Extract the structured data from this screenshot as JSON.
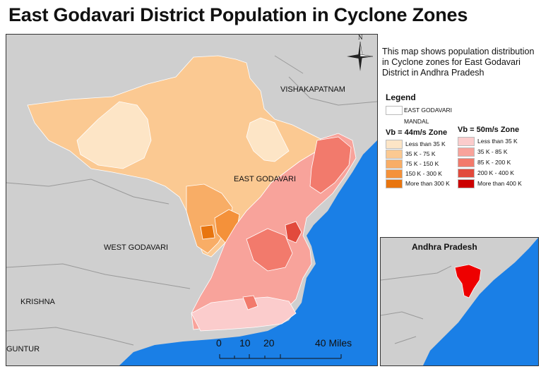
{
  "title": "East Godavari District Population in Cyclone Zones",
  "description": "This map shows population distribution in Cyclone zones for East Godavari District in Andhra Pradesh",
  "north_arrow": {
    "label": "N",
    "icon": "north-arrow-icon"
  },
  "map_labels": {
    "vishakapatnam": "VISHAKAPATNAM",
    "east_godavari": "EAST GODAVARI",
    "west_godavari": "WEST GODAVARI",
    "krishna": "KRISHNA",
    "guntur": "GUNTUR"
  },
  "legend": {
    "title": "Legend",
    "district_label": "EAST GODAVARI",
    "mandal_label": "MANDAL",
    "zone44": {
      "title": "Vb = 44m/s Zone",
      "items": [
        {
          "label": "Less than 35 K",
          "color": "#fde5c6"
        },
        {
          "label": "35 K - 75 K",
          "color": "#fbc992"
        },
        {
          "label": "75 K - 150 K",
          "color": "#f8ad66"
        },
        {
          "label": "150 K - 300 K",
          "color": "#f4913a"
        },
        {
          "label": "More than 300 K",
          "color": "#e8750f"
        }
      ]
    },
    "zone50": {
      "title": "Vb = 50m/s Zone",
      "items": [
        {
          "label": "Less than 35 K",
          "color": "#fbcccc"
        },
        {
          "label": "35 K - 85 K",
          "color": "#f8a39b"
        },
        {
          "label": "85 K - 200 K",
          "color": "#f27a6c"
        },
        {
          "label": "200 K - 400 K",
          "color": "#e24a3c"
        },
        {
          "label": "More than 400 K",
          "color": "#cc0000"
        }
      ]
    }
  },
  "inset": {
    "title": "Andhra Pradesh",
    "highlight_color": "#ee0000"
  },
  "scale": {
    "ticks": [
      "0",
      "10",
      "20",
      "40 Miles"
    ]
  },
  "colors": {
    "sea": "#1a7fe6",
    "land": "#cfcfcf"
  }
}
